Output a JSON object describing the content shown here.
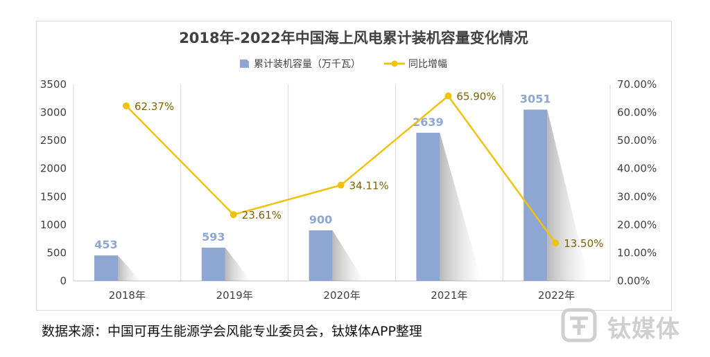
{
  "chart_data": {
    "type": "bar+line",
    "title": "2018年-2022年中国海上风电累计装机容量变化情况",
    "categories": [
      "2018年",
      "2019年",
      "2020年",
      "2021年",
      "2022年"
    ],
    "series": [
      {
        "name": "累计装机容量（万千瓦）",
        "type": "bar",
        "axis": "left",
        "values": [
          453,
          593,
          900,
          2639,
          3051
        ],
        "labels": [
          "453",
          "593",
          "900",
          "2639",
          "3051"
        ]
      },
      {
        "name": "同比增幅",
        "type": "line",
        "axis": "right",
        "values": [
          62.37,
          23.61,
          34.11,
          65.9,
          13.5
        ],
        "labels": [
          "62.37%",
          "23.61%",
          "34.11%",
          "65.90%",
          "13.50%"
        ]
      }
    ],
    "y_left": {
      "min": 0,
      "max": 3500,
      "ticks": [
        "0",
        "500",
        "1000",
        "1500",
        "2000",
        "2500",
        "3000",
        "3500"
      ]
    },
    "y_right": {
      "min": 0,
      "max": 70,
      "ticks": [
        "0.00%",
        "10.00%",
        "20.00%",
        "30.00%",
        "40.00%",
        "50.00%",
        "60.00%",
        "70.00%"
      ]
    },
    "legend_position": "top",
    "grid": "vertical",
    "colors": {
      "bar": "#8ea6d2",
      "line": "#f2c10c",
      "bar_label": "#8ea6d2",
      "line_label": "#806000"
    }
  },
  "source": "数据来源：中国可再生能源学会风能专业委员会，钛媒体APP整理",
  "watermark": "钛媒体"
}
